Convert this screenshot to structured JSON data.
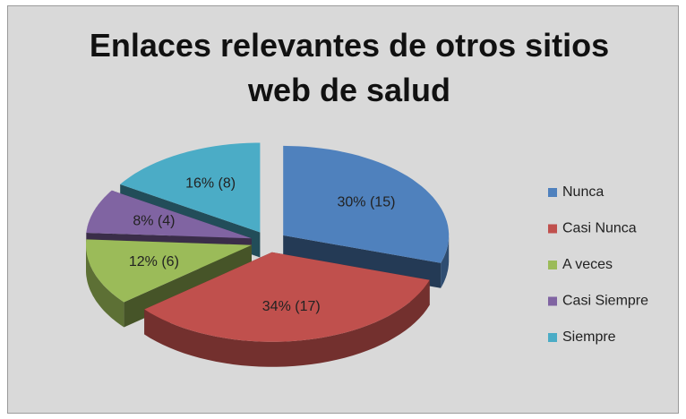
{
  "chart_data": {
    "type": "pie",
    "title": "Enlaces relevantes de otros sitios web de salud",
    "categories": [
      "Nunca",
      "Casi Nunca",
      "A veces",
      "Casi Siempre",
      "Siempre"
    ],
    "values": [
      30,
      34,
      12,
      8,
      16
    ],
    "value_labels": [
      "30% (15)",
      "34% (17)",
      "12% (6)",
      "8% (4)",
      "16% (8)"
    ],
    "colors": [
      "#4f81bd",
      "#c0504d",
      "#9bbb59",
      "#8064a2",
      "#4bacc6"
    ],
    "legend": "right"
  }
}
